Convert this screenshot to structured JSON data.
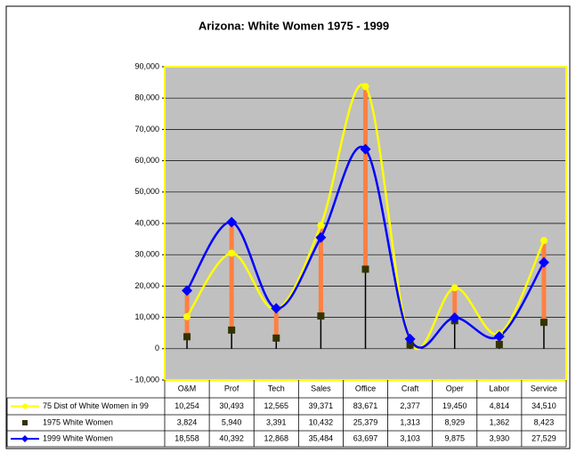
{
  "chart_data": {
    "type": "line",
    "title": "Arizona: White Women 1975 - 1999",
    "categories": [
      "O&M",
      "Prof",
      "Tech",
      "Sales",
      "Office",
      "Craft",
      "Oper",
      "Labor",
      "Service"
    ],
    "series": [
      {
        "name": "75 Dist of White Women in 99",
        "color": "#ffff00",
        "marker": "circle",
        "values": [
          10254,
          30493,
          12565,
          39371,
          83671,
          2377,
          19450,
          4814,
          34510
        ],
        "value_labels": [
          "10,254",
          "30,493",
          "12,565",
          "39,371",
          "83,671",
          "2,377",
          "19,450",
          "4,814",
          "34,510"
        ]
      },
      {
        "name": "1975 White Women",
        "color": "#333300",
        "marker": "square",
        "values": [
          3824,
          5940,
          3391,
          10432,
          25379,
          1313,
          8929,
          1362,
          8423
        ],
        "value_labels": [
          "3,824",
          "5,940",
          "3,391",
          "10,432",
          "25,379",
          "1,313",
          "8,929",
          "1,362",
          "8,423"
        ]
      },
      {
        "name": "1999 White Women",
        "color": "#0000ff",
        "marker": "diamond",
        "values": [
          18558,
          40392,
          12868,
          35484,
          63697,
          3103,
          9875,
          3930,
          27529
        ],
        "value_labels": [
          "18,558",
          "40,392",
          "12,868",
          "35,484",
          "63,697",
          "3,103",
          "9,875",
          "3,930",
          "27,529"
        ]
      }
    ],
    "ylim": [
      -10000,
      90000
    ],
    "yticks": [
      {
        "value": -10000,
        "label": "- 10,000"
      },
      0,
      {
        "value": 10000,
        "label": "10,000"
      },
      {
        "value": 20000,
        "label": "20,000"
      },
      {
        "value": 30000,
        "label": "30,000"
      },
      {
        "value": 40000,
        "label": "40,000"
      },
      {
        "value": 50000,
        "label": "50,000"
      },
      {
        "value": 60000,
        "label": "60,000"
      },
      {
        "value": 70000,
        "label": "70,000"
      },
      {
        "value": 80000,
        "label": "80,000"
      },
      {
        "value": 90000,
        "label": "90,000"
      }
    ],
    "grid": true,
    "plot_background": "#c0c0c0",
    "plot_border": "#ffff00",
    "high_low_color": "#ff8040"
  }
}
